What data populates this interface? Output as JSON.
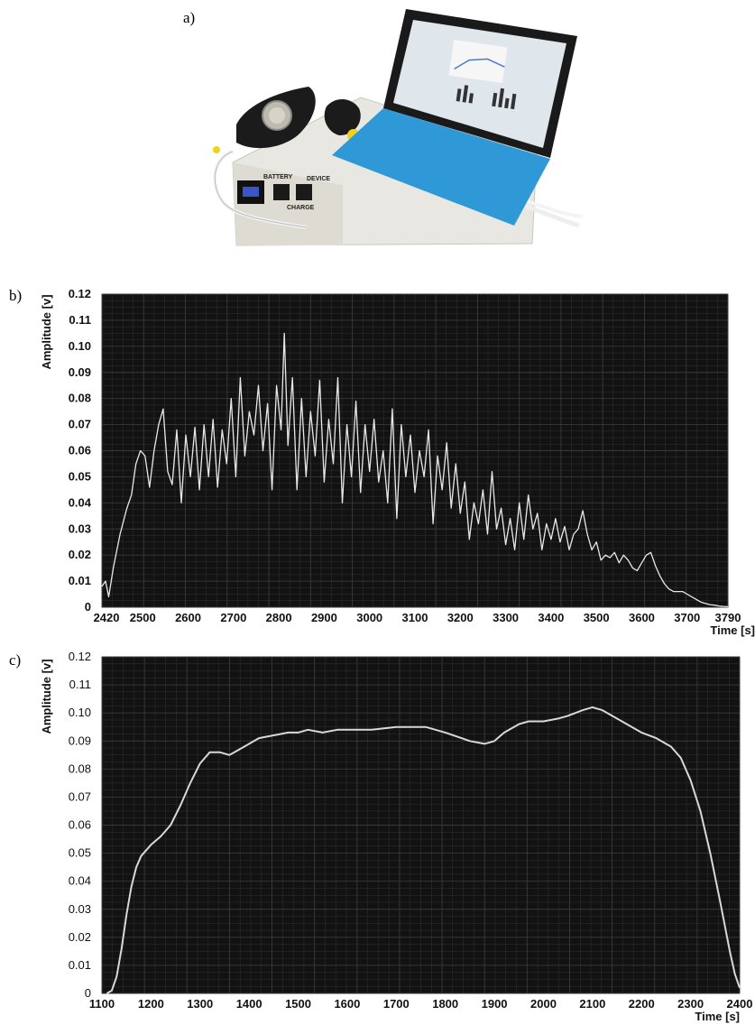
{
  "panels": {
    "a": "a)",
    "b": "b)",
    "c": "c)"
  },
  "photo": {
    "description_icons": [
      "device-box",
      "breathing-mask",
      "tablet-computer",
      "keyboard",
      "cables"
    ],
    "device_labels": {
      "battery": "BATTERY",
      "device": "DEVICE",
      "charge": "CHARGE"
    }
  },
  "colors": {
    "plot_bg": "#121212",
    "grid": "#3a3a3a",
    "trace_b": "#e8e8e8",
    "trace_c": "#d8d8d8",
    "device": "#e9e7e1",
    "mask": "#1b1b1b",
    "keyboard": "#2f98d6",
    "screen": "#1a1a1a"
  },
  "chart_data": [
    {
      "id": "b",
      "type": "line",
      "ylabel": "Amplitude [v]",
      "xlabel": "Time [s]",
      "xlim": [
        2410,
        3790
      ],
      "ylim": [
        0,
        0.12
      ],
      "xticks": [
        "2420",
        "2500",
        "2600",
        "2700",
        "2800",
        "2900",
        "3000",
        "3100",
        "3200",
        "3300",
        "3400",
        "3500",
        "3600",
        "3700",
        "3790"
      ],
      "xtick_values": [
        2420,
        2500,
        2600,
        2700,
        2800,
        2900,
        3000,
        3100,
        3200,
        3300,
        3400,
        3500,
        3600,
        3700,
        3790
      ],
      "yticks": [
        "0",
        "0.01",
        "0.02",
        "0.03",
        "0.04",
        "0.05",
        "0.06",
        "0.07",
        "0.08",
        "0.09",
        "0.10",
        "0.11",
        "0.12"
      ],
      "grid": true,
      "series": [
        {
          "x": [
            2410,
            2418,
            2425,
            2435,
            2450,
            2465,
            2475,
            2485,
            2495,
            2505,
            2515,
            2525,
            2535,
            2545,
            2555,
            2565,
            2575,
            2585,
            2595,
            2605,
            2615,
            2625,
            2635,
            2645,
            2655,
            2665,
            2675,
            2685,
            2695,
            2705,
            2715,
            2725,
            2735,
            2745,
            2755,
            2765,
            2775,
            2785,
            2795,
            2805,
            2812,
            2820,
            2830,
            2840,
            2850,
            2860,
            2870,
            2880,
            2890,
            2900,
            2910,
            2920,
            2930,
            2940,
            2950,
            2960,
            2970,
            2980,
            2990,
            3000,
            3010,
            3020,
            3030,
            3040,
            3050,
            3060,
            3070,
            3080,
            3090,
            3100,
            3110,
            3120,
            3130,
            3140,
            3150,
            3160,
            3170,
            3180,
            3190,
            3200,
            3210,
            3220,
            3230,
            3240,
            3250,
            3260,
            3270,
            3280,
            3290,
            3300,
            3310,
            3320,
            3330,
            3340,
            3350,
            3360,
            3370,
            3380,
            3390,
            3400,
            3410,
            3420,
            3430,
            3440,
            3450,
            3460,
            3470,
            3480,
            3490,
            3500,
            3510,
            3520,
            3530,
            3540,
            3550,
            3560,
            3570,
            3580,
            3590,
            3600,
            3610,
            3620,
            3630,
            3640,
            3650,
            3660,
            3670,
            3680,
            3690,
            3700,
            3710,
            3720,
            3730,
            3740,
            3750,
            3760,
            3770,
            3780,
            3790
          ],
          "y": [
            0.008,
            0.01,
            0.004,
            0.015,
            0.028,
            0.038,
            0.043,
            0.055,
            0.06,
            0.058,
            0.046,
            0.06,
            0.07,
            0.076,
            0.052,
            0.047,
            0.068,
            0.04,
            0.066,
            0.05,
            0.069,
            0.045,
            0.07,
            0.05,
            0.072,
            0.046,
            0.068,
            0.055,
            0.08,
            0.05,
            0.088,
            0.058,
            0.075,
            0.066,
            0.085,
            0.06,
            0.078,
            0.045,
            0.085,
            0.068,
            0.105,
            0.062,
            0.088,
            0.045,
            0.08,
            0.05,
            0.075,
            0.058,
            0.087,
            0.048,
            0.072,
            0.055,
            0.088,
            0.04,
            0.07,
            0.05,
            0.079,
            0.044,
            0.07,
            0.052,
            0.072,
            0.048,
            0.06,
            0.04,
            0.076,
            0.034,
            0.07,
            0.05,
            0.066,
            0.044,
            0.06,
            0.05,
            0.068,
            0.032,
            0.058,
            0.045,
            0.063,
            0.038,
            0.055,
            0.036,
            0.048,
            0.026,
            0.04,
            0.032,
            0.045,
            0.028,
            0.052,
            0.03,
            0.038,
            0.024,
            0.034,
            0.022,
            0.04,
            0.026,
            0.043,
            0.03,
            0.036,
            0.022,
            0.032,
            0.026,
            0.034,
            0.025,
            0.031,
            0.022,
            0.028,
            0.03,
            0.037,
            0.028,
            0.022,
            0.025,
            0.018,
            0.02,
            0.019,
            0.021,
            0.017,
            0.02,
            0.018,
            0.015,
            0.014,
            0.017,
            0.02,
            0.021,
            0.016,
            0.012,
            0.009,
            0.007,
            0.006,
            0.006,
            0.006,
            0.005,
            0.004,
            0.003,
            0.002,
            0.0015,
            0.001,
            0.0008,
            0.0005,
            0.0003,
            0.0002
          ]
        }
      ]
    },
    {
      "id": "c",
      "type": "line",
      "ylabel": "Amplitude [v]",
      "xlabel": "Time [s]",
      "xlim": [
        1100,
        2400
      ],
      "ylim": [
        0,
        0.12
      ],
      "xticks": [
        "1100",
        "1200",
        "1300",
        "1400",
        "1500",
        "1600",
        "1700",
        "1800",
        "1900",
        "2000",
        "2100",
        "2200",
        "2300",
        "2400"
      ],
      "xtick_values": [
        1100,
        1200,
        1300,
        1400,
        1500,
        1600,
        1700,
        1800,
        1900,
        2000,
        2100,
        2200,
        2300,
        2400
      ],
      "yticks": [
        "0",
        "0.01",
        "0.02",
        "0.03",
        "0.04",
        "0.05",
        "0.06",
        "0.07",
        "0.08",
        "0.09",
        "0.10",
        "0.11",
        "0.12"
      ],
      "grid": true,
      "series": [
        {
          "x": [
            1110,
            1120,
            1130,
            1140,
            1150,
            1160,
            1170,
            1180,
            1200,
            1220,
            1240,
            1260,
            1280,
            1300,
            1320,
            1340,
            1360,
            1380,
            1400,
            1420,
            1450,
            1480,
            1500,
            1520,
            1550,
            1580,
            1600,
            1650,
            1700,
            1750,
            1760,
            1800,
            1850,
            1880,
            1900,
            1920,
            1950,
            1970,
            2000,
            2030,
            2050,
            2080,
            2100,
            2120,
            2150,
            2180,
            2200,
            2230,
            2260,
            2280,
            2300,
            2320,
            2340,
            2360,
            2380,
            2390,
            2400
          ],
          "y": [
            0.0,
            0.001,
            0.006,
            0.016,
            0.028,
            0.038,
            0.045,
            0.049,
            0.053,
            0.056,
            0.06,
            0.067,
            0.075,
            0.082,
            0.086,
            0.086,
            0.085,
            0.087,
            0.089,
            0.091,
            0.092,
            0.093,
            0.093,
            0.094,
            0.093,
            0.094,
            0.094,
            0.094,
            0.095,
            0.095,
            0.095,
            0.093,
            0.09,
            0.089,
            0.09,
            0.093,
            0.096,
            0.097,
            0.097,
            0.098,
            0.099,
            0.101,
            0.102,
            0.101,
            0.098,
            0.095,
            0.093,
            0.091,
            0.088,
            0.084,
            0.076,
            0.065,
            0.05,
            0.033,
            0.015,
            0.007,
            0.002
          ]
        }
      ]
    }
  ]
}
